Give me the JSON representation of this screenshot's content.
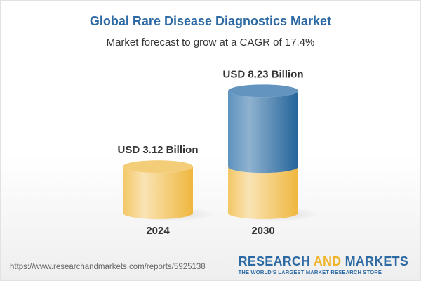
{
  "chart_data": {
    "type": "bar",
    "style": "3d-cylinder",
    "title": "Global Rare Disease Diagnostics Market",
    "subtitle": "Market forecast to grow at a CAGR of 17.4%",
    "categories": [
      "2024",
      "2030"
    ],
    "values": [
      3.12,
      8.23
    ],
    "data_labels": [
      "USD 3.12 Billion",
      "USD 8.23 Billion"
    ],
    "unit": "USD Billion",
    "grid": false,
    "colors": {
      "base": "#f2c14e",
      "growth": "#2e6aa0",
      "title": "#2d6aa3"
    }
  },
  "footer": {
    "url": "https://www.researchandmarkets.com/reports/5925138",
    "logo_part1": "RESEARCH ",
    "logo_part2": "AND",
    "logo_part3": " MARKETS",
    "logo_tagline": "THE WORLD'S LARGEST MARKET RESEARCH STORE"
  }
}
